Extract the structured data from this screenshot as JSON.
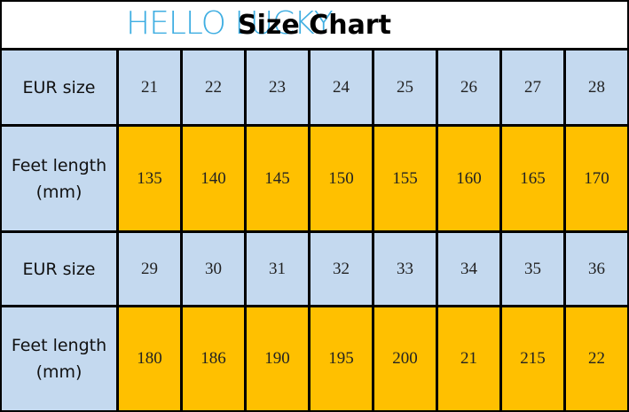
{
  "header": {
    "title": "Size Chart",
    "watermark": "HELLO LUCKY"
  },
  "table": {
    "rows": [
      {
        "label": [
          "EUR size"
        ],
        "cells": [
          21,
          22,
          23,
          24,
          25,
          26,
          27,
          28
        ]
      },
      {
        "label": [
          "Feet length",
          "(mm)"
        ],
        "cells": [
          135,
          140,
          145,
          150,
          155,
          160,
          165,
          170
        ]
      },
      {
        "label": [
          "EUR size"
        ],
        "cells": [
          29,
          30,
          31,
          32,
          33,
          34,
          35,
          36
        ]
      },
      {
        "label": [
          "Feet length",
          "(mm)"
        ],
        "cells": [
          180,
          186,
          190,
          195,
          200,
          21,
          215,
          22
        ]
      }
    ]
  }
}
